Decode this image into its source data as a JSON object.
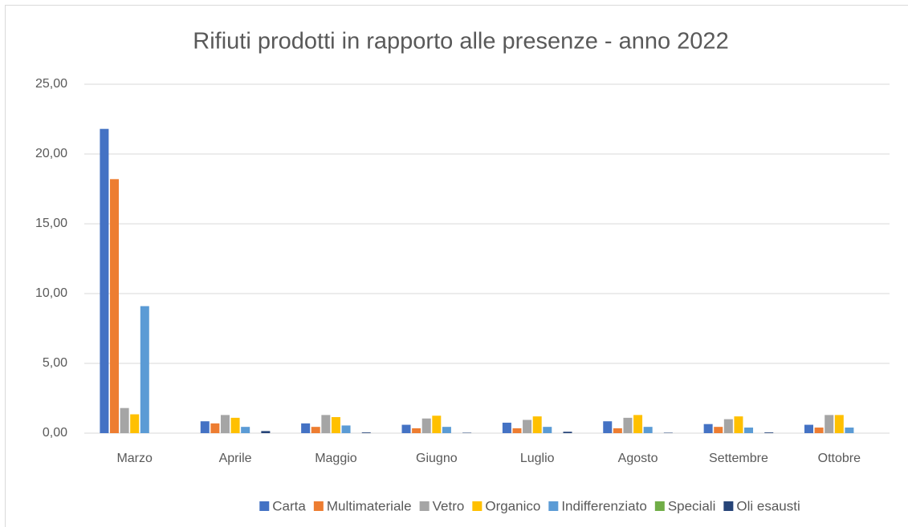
{
  "chart_data": {
    "type": "bar",
    "title": "Rifiuti prodotti in rapporto alle presenze - anno 2022",
    "categories": [
      "Marzo",
      "Aprile",
      "Maggio",
      "Giugno",
      "Luglio",
      "Agosto",
      "Settembre",
      "Ottobre"
    ],
    "series": [
      {
        "name": "Carta",
        "color": "#4472c4",
        "values": [
          21.8,
          0.85,
          0.7,
          0.6,
          0.75,
          0.85,
          0.65,
          0.6
        ]
      },
      {
        "name": "Multimateriale",
        "color": "#ed7d31",
        "values": [
          18.2,
          0.7,
          0.45,
          0.35,
          0.35,
          0.35,
          0.45,
          0.4
        ]
      },
      {
        "name": "Vetro",
        "color": "#a5a5a5",
        "values": [
          1.8,
          1.3,
          1.3,
          1.05,
          0.95,
          1.1,
          1.0,
          1.3
        ]
      },
      {
        "name": "Organico",
        "color": "#ffc000",
        "values": [
          1.35,
          1.1,
          1.15,
          1.25,
          1.2,
          1.3,
          1.2,
          1.3
        ]
      },
      {
        "name": "Indifferenziato",
        "color": "#5b9bd5",
        "values": [
          9.1,
          0.45,
          0.55,
          0.45,
          0.45,
          0.45,
          0.4,
          0.4
        ]
      },
      {
        "name": "Speciali",
        "color": "#70ad47",
        "values": [
          0,
          0,
          0,
          0,
          0,
          0,
          0,
          0
        ]
      },
      {
        "name": "Oli esausti",
        "color": "#264478",
        "values": [
          0,
          0.15,
          0.05,
          0.03,
          0.1,
          0.03,
          0.05,
          0
        ]
      }
    ],
    "ylim": [
      0,
      25
    ],
    "yticks": [
      {
        "value": 0,
        "label": "0,00"
      },
      {
        "value": 5,
        "label": "5,00"
      },
      {
        "value": 10,
        "label": "10,00"
      },
      {
        "value": 15,
        "label": "15,00"
      },
      {
        "value": 20,
        "label": "20,00"
      },
      {
        "value": 25,
        "label": "25,00"
      }
    ],
    "grid": true,
    "legend": "bottom"
  }
}
